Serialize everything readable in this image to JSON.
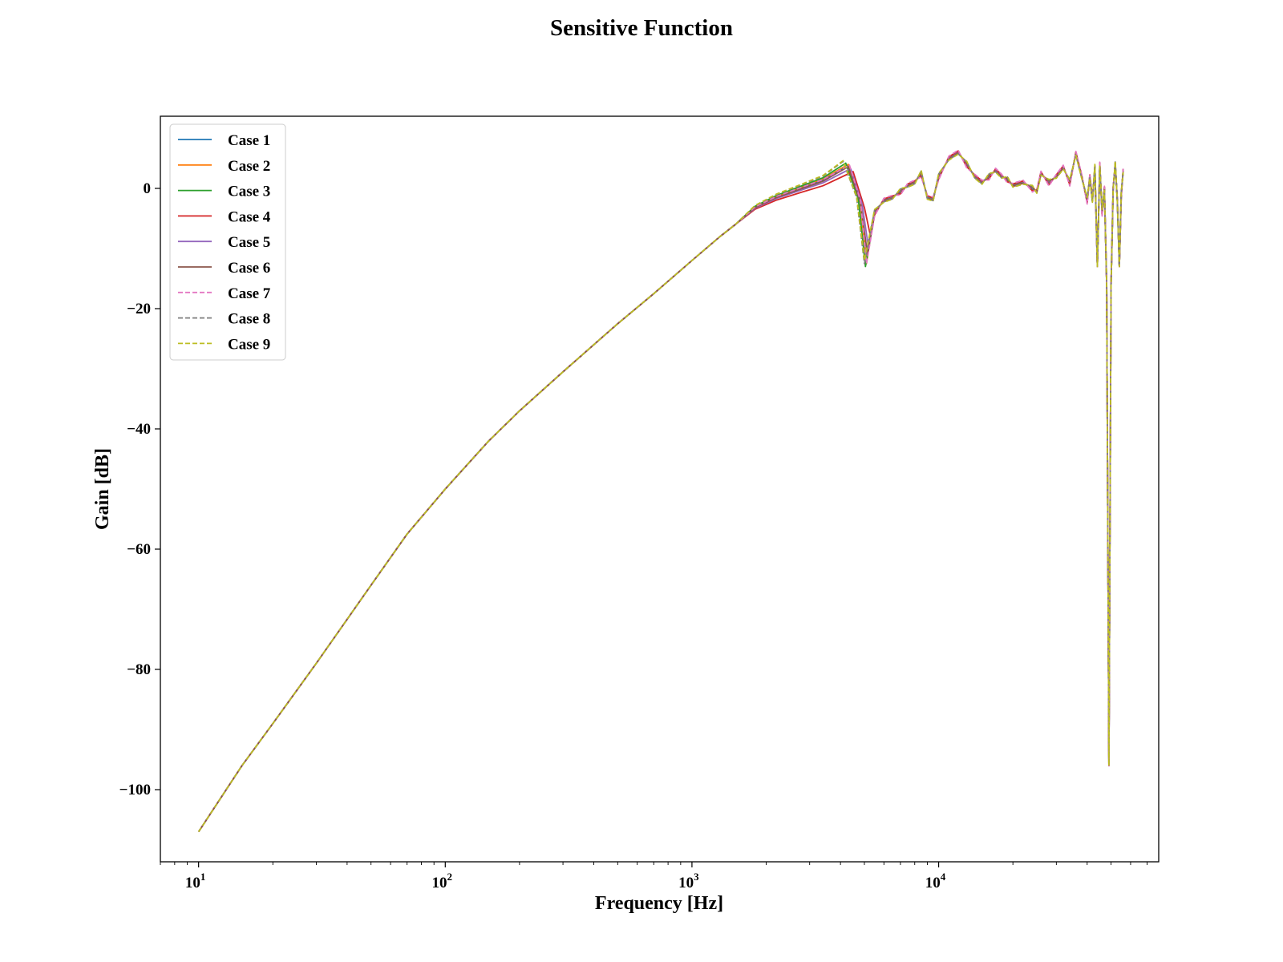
{
  "chart_data": {
    "type": "line",
    "title": "Sensitive Function",
    "xlabel": "Frequency [Hz]",
    "ylabel": "Gain [dB]",
    "xscale": "log",
    "xlim": [
      7,
      78000
    ],
    "ylim": [
      -112,
      12
    ],
    "grid": false,
    "legend_position": "top-left",
    "x_ticks": [
      {
        "value": 10,
        "base": "10",
        "exp": "1"
      },
      {
        "value": 100,
        "base": "10",
        "exp": "2"
      },
      {
        "value": 1000,
        "base": "10",
        "exp": "3"
      },
      {
        "value": 10000,
        "base": "10",
        "exp": "4"
      }
    ],
    "y_ticks": [
      {
        "value": 0,
        "label": "0"
      },
      {
        "value": -20,
        "label": "−20"
      },
      {
        "value": -40,
        "label": "−40"
      },
      {
        "value": -60,
        "label": "−60"
      },
      {
        "value": -80,
        "label": "−80"
      },
      {
        "value": -100,
        "label": "−100"
      }
    ],
    "low_freq_curve": {
      "x": [
        10,
        15,
        20,
        30,
        50,
        70,
        100,
        150,
        200,
        300,
        500,
        700,
        1000,
        1300,
        1500
      ],
      "y": [
        -107,
        -96,
        -89,
        -79,
        -66,
        -57.5,
        -50,
        -42,
        -37,
        -30.5,
        -22.5,
        -17.5,
        -12,
        -8,
        -6
      ]
    },
    "series": [
      {
        "name": "Case 1",
        "color": "#1f77b4",
        "dash": "solid",
        "peak_freq": 4300,
        "peak_gain": 3.8,
        "dip_freq": 5100,
        "dip_gain": -12.0,
        "offset": 0.0
      },
      {
        "name": "Case 2",
        "color": "#ff7f0e",
        "dash": "solid",
        "peak_freq": 4300,
        "peak_gain": 4.0,
        "dip_freq": 5100,
        "dip_gain": -12.5,
        "offset": 0.3
      },
      {
        "name": "Case 3",
        "color": "#2ca02c",
        "dash": "solid",
        "peak_freq": 4200,
        "peak_gain": 4.2,
        "dip_freq": 5050,
        "dip_gain": -13.0,
        "offset": -0.3
      },
      {
        "name": "Case 4",
        "color": "#d62728",
        "dash": "solid",
        "peak_freq": 4500,
        "peak_gain": 2.8,
        "dip_freq": 5300,
        "dip_gain": -8.0,
        "offset": -0.4
      },
      {
        "name": "Case 5",
        "color": "#9467bd",
        "dash": "solid",
        "peak_freq": 4400,
        "peak_gain": 3.3,
        "dip_freq": 5200,
        "dip_gain": -10.0,
        "offset": 0.1
      },
      {
        "name": "Case 6",
        "color": "#8c564b",
        "dash": "solid",
        "peak_freq": 4300,
        "peak_gain": 3.6,
        "dip_freq": 5150,
        "dip_gain": -11.0,
        "offset": 0.2
      },
      {
        "name": "Case 7",
        "color": "#e377c2",
        "dash": "dashed",
        "peak_freq": 4350,
        "peak_gain": 3.9,
        "dip_freq": 5100,
        "dip_gain": -12.5,
        "offset": -0.6
      },
      {
        "name": "Case 8",
        "color": "#7f7f7f",
        "dash": "dashed",
        "peak_freq": 4100,
        "peak_gain": 4.5,
        "dip_freq": 5000,
        "dip_gain": -12.5,
        "offset": 0.4
      },
      {
        "name": "Case 9",
        "color": "#bcbd22",
        "dash": "dashed",
        "peak_freq": 4100,
        "peak_gain": 4.6,
        "dip_freq": 5000,
        "dip_gain": -12.0,
        "offset": 0.5
      }
    ],
    "high_freq_shape": {
      "x": [
        5500,
        6000,
        6500,
        7000,
        7500,
        8000,
        8500,
        9000,
        9500,
        10000,
        11000,
        12000,
        13000,
        14000,
        15000,
        16000,
        17000,
        18000,
        19000,
        20000,
        22000,
        24000,
        25000,
        26000,
        28000,
        30000,
        32000,
        34000,
        36000,
        38000,
        40000,
        41000,
        42000,
        43000,
        44000,
        45000,
        46000,
        47000,
        48000,
        49000,
        50000,
        51000,
        52000,
        53000,
        54000,
        55000,
        56000
      ],
      "y": [
        -4,
        -2,
        -1.5,
        -0.5,
        0.5,
        1,
        2.5,
        -1.5,
        -1.8,
        2,
        5,
        6,
        4,
        2,
        1,
        2,
        3,
        2,
        1.5,
        0.5,
        1,
        0,
        -0.5,
        2.5,
        1,
        2,
        3.5,
        1,
        5.8,
        2,
        -2,
        2,
        -2,
        3.5,
        -13,
        4,
        -4,
        0,
        -16,
        -96,
        -16,
        0,
        4,
        -2,
        -13,
        -1,
        3
      ]
    }
  }
}
